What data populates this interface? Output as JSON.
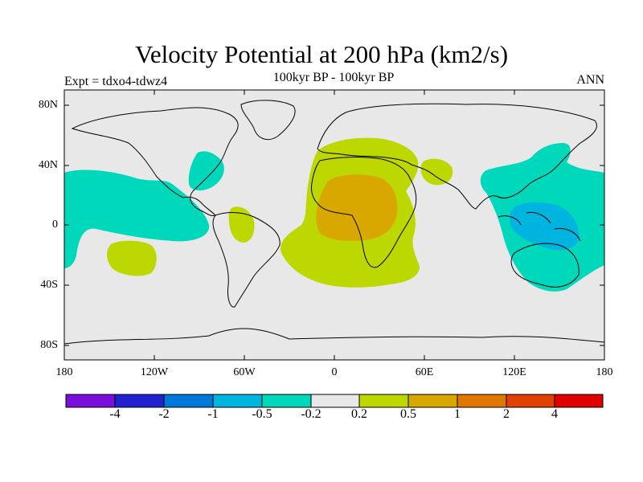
{
  "header": {
    "title": "Velocity Potential at 200 hPa (km2/s)",
    "subtitle": "100kyr BP - 100kyr BP",
    "experiment": "Expt = tdxo4-tdwz4",
    "season": "ANN"
  },
  "axes": {
    "lat_labels": [
      "80N",
      "40N",
      "0",
      "40S",
      "80S"
    ],
    "lon_labels": [
      "180",
      "120W",
      "60W",
      "0",
      "60E",
      "120E",
      "180"
    ]
  },
  "colorbar": {
    "colors": [
      "#7a0fdc",
      "#2222d0",
      "#0078d8",
      "#00b4e0",
      "#00d8bc",
      "#e8e8e8",
      "#bcd800",
      "#d8a800",
      "#e07800",
      "#e04000",
      "#e00000"
    ],
    "labels": [
      "-4",
      "-2",
      "-1",
      "-0.5",
      "-0.2",
      "0.2",
      "0.5",
      "1",
      "2",
      "4"
    ]
  },
  "colors": {
    "background": "#e8e8e8",
    "negative_weak": "#00d8bc",
    "negative_mid": "#00b4e0",
    "positive_weak": "#bcd800",
    "positive_mid": "#d8a800"
  }
}
